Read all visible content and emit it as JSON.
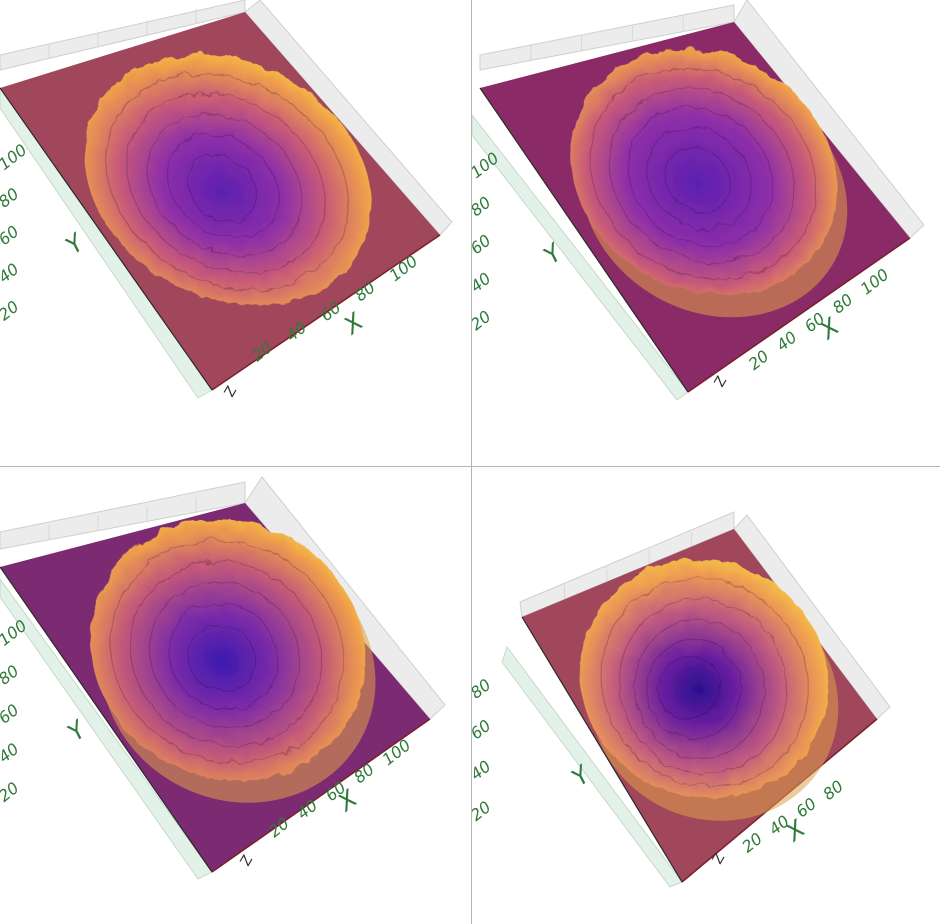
{
  "chart_data": [
    {
      "type": "surface3d",
      "panel": "top-left",
      "xlabel": "X",
      "ylabel": "Y",
      "zlabel": "Z",
      "xticks": [
        "20",
        "40",
        "60",
        "80",
        "100"
      ],
      "yticks": [
        "20",
        "40",
        "60",
        "80",
        "100"
      ],
      "floor_color": "#a1475c",
      "surface_colors": [
        "#5b1fb0",
        "#8e2fa8",
        "#c75a78",
        "#f0a04a",
        "#f6d640"
      ],
      "shape": "flat-ellipse"
    },
    {
      "type": "surface3d",
      "panel": "top-right",
      "xlabel": "X",
      "ylabel": "Y",
      "zlabel": "Z",
      "xticks": [
        "20",
        "40",
        "60",
        "80",
        "100"
      ],
      "yticks": [
        "20",
        "40",
        "60",
        "80",
        "100"
      ],
      "floor_color": "#8a2a66",
      "surface_colors": [
        "#5b1fb0",
        "#8e2fa8",
        "#c75a78",
        "#f0a04a",
        "#f6d640"
      ],
      "shape": "shallow-bowl"
    },
    {
      "type": "surface3d",
      "panel": "bottom-left",
      "xlabel": "X",
      "ylabel": "Y",
      "zlabel": "Z",
      "xticks": [
        "20",
        "40",
        "60",
        "80",
        "100"
      ],
      "yticks": [
        "20",
        "40",
        "60",
        "80",
        "100"
      ],
      "floor_color": "#7c2a72",
      "surface_colors": [
        "#3a1ab0",
        "#7a2aa8",
        "#c45a78",
        "#f0a04a",
        "#f6d640"
      ],
      "shape": "deep-bowl"
    },
    {
      "type": "surface3d",
      "panel": "bottom-right",
      "xlabel": "X",
      "ylabel": "Y",
      "zlabel": "Z",
      "xticks": [
        "20",
        "40",
        "60",
        "80"
      ],
      "yticks": [
        "20",
        "40",
        "60",
        "80"
      ],
      "floor_color": "#a1475c",
      "surface_colors": [
        "#2a0f8f",
        "#6a1f9f",
        "#c05a80",
        "#f0a050",
        "#f6d640"
      ],
      "shape": "spiral-crater"
    }
  ],
  "theme": {
    "tick_color": "#2f7a3a",
    "divider_color": "#b5b5b5",
    "grid_color": "#d9d9d9",
    "box_color": "#ececec"
  }
}
